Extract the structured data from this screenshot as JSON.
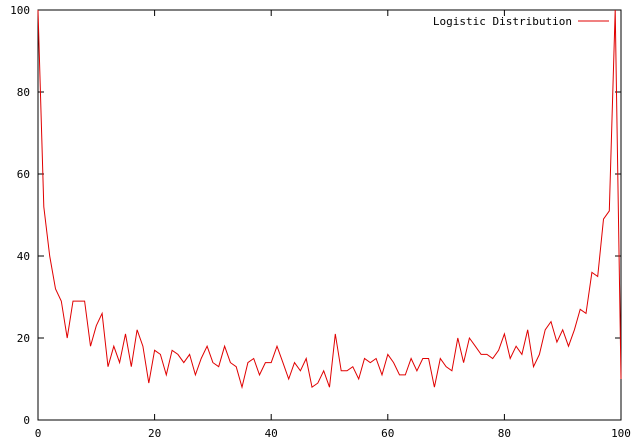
{
  "chart_data": {
    "type": "line",
    "xlim": [
      0,
      100
    ],
    "ylim": [
      0,
      100
    ],
    "xticks": [
      0,
      20,
      40,
      60,
      80,
      100
    ],
    "yticks": [
      0,
      20,
      40,
      60,
      80,
      100
    ],
    "xtick_labels": [
      "0",
      "20",
      "40",
      "60",
      "80",
      "100"
    ],
    "ytick_labels": [
      "0",
      "20",
      "40",
      "60",
      "80",
      "100"
    ],
    "grid": false,
    "legend_position": "top-right",
    "series": [
      {
        "name": "Logistic Distribution",
        "color": "#e00000",
        "x": [
          0,
          1,
          2,
          3,
          4,
          5,
          6,
          7,
          8,
          9,
          10,
          11,
          12,
          13,
          14,
          15,
          16,
          17,
          18,
          19,
          20,
          21,
          22,
          23,
          24,
          25,
          26,
          27,
          28,
          29,
          30,
          31,
          32,
          33,
          34,
          35,
          36,
          37,
          38,
          39,
          40,
          41,
          42,
          43,
          44,
          45,
          46,
          47,
          48,
          49,
          50,
          51,
          52,
          53,
          54,
          55,
          56,
          57,
          58,
          59,
          60,
          61,
          62,
          63,
          64,
          65,
          66,
          67,
          68,
          69,
          70,
          71,
          72,
          73,
          74,
          75,
          76,
          77,
          78,
          79,
          80,
          81,
          82,
          83,
          84,
          85,
          86,
          87,
          88,
          89,
          90,
          91,
          92,
          93,
          94,
          95,
          96,
          97,
          98,
          99,
          100
        ],
        "y": [
          100,
          52,
          40,
          32,
          29,
          20,
          29,
          29,
          29,
          18,
          23,
          26,
          13,
          18,
          14,
          21,
          13,
          22,
          18,
          9,
          17,
          16,
          11,
          17,
          16,
          14,
          16,
          11,
          15,
          18,
          14,
          13,
          18,
          14,
          13,
          8,
          14,
          15,
          11,
          14,
          14,
          18,
          14,
          10,
          14,
          12,
          15,
          8,
          9,
          12,
          8,
          21,
          12,
          12,
          13,
          10,
          15,
          14,
          15,
          11,
          16,
          14,
          11,
          11,
          15,
          12,
          15,
          15,
          8,
          15,
          13,
          12,
          20,
          14,
          20,
          18,
          16,
          16,
          15,
          17,
          21,
          15,
          18,
          16,
          22,
          13,
          16,
          22,
          24,
          19,
          22,
          18,
          22,
          27,
          26,
          36,
          35,
          49,
          51,
          100,
          10
        ]
      }
    ]
  }
}
